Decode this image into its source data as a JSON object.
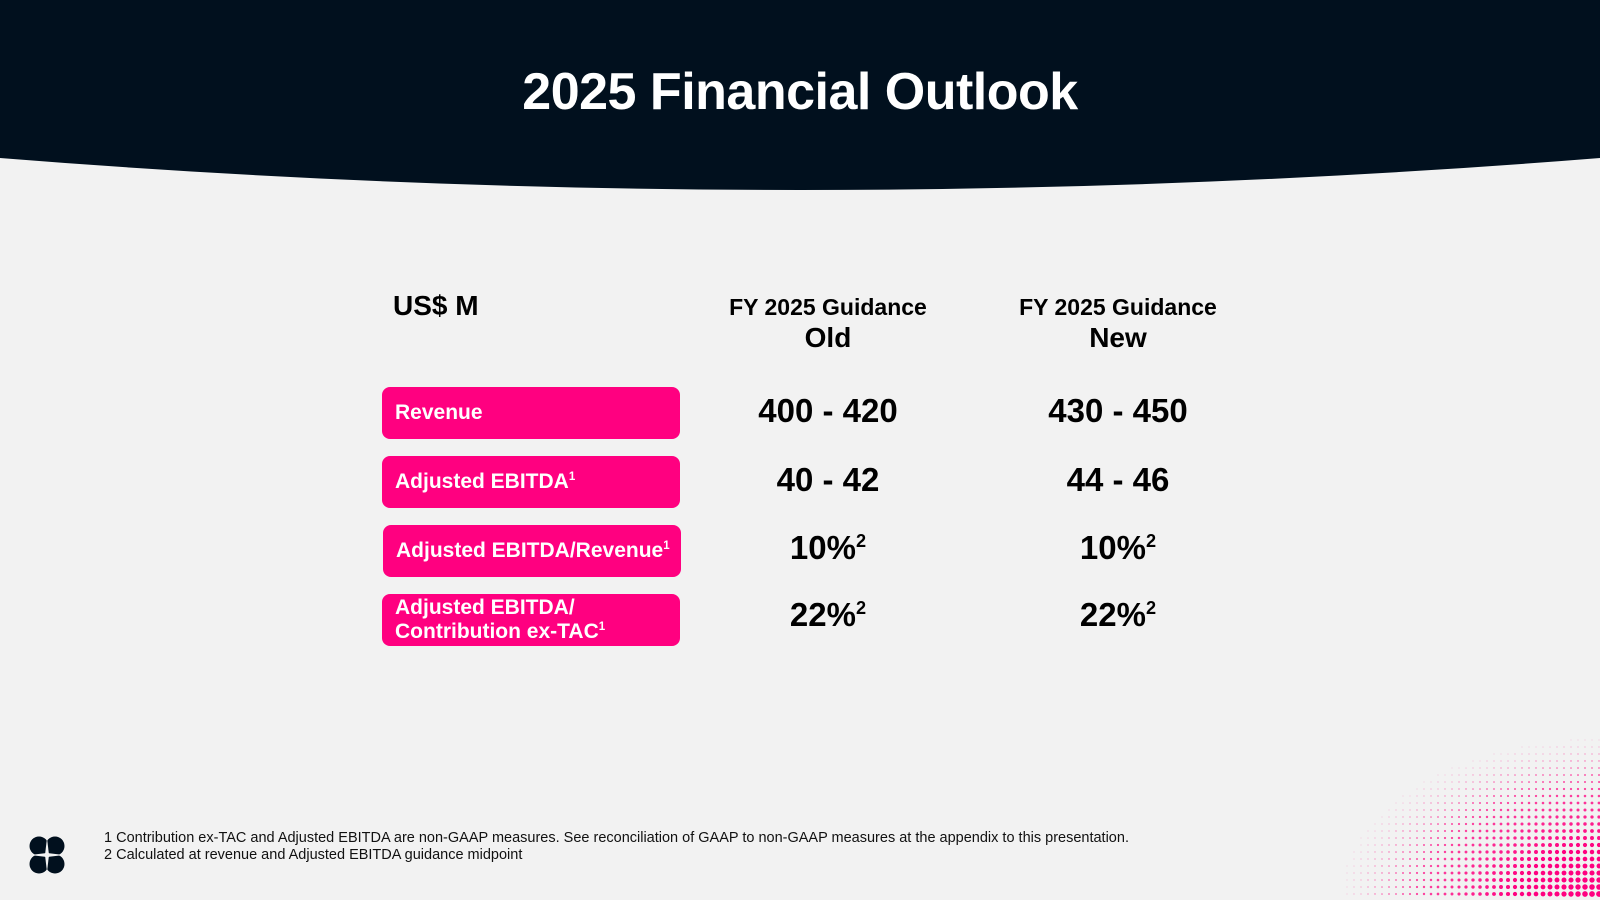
{
  "slide": {
    "title": "2025 Financial Outlook"
  },
  "table": {
    "unit_label": "US$ M",
    "columns": [
      {
        "line1": "FY 2025 Guidance",
        "line2": "Old"
      },
      {
        "line1": "FY 2025 Guidance",
        "line2": "New"
      }
    ],
    "rows": [
      {
        "label": "Revenue",
        "label_sup": "",
        "label_line2": "",
        "old": "400 - 420",
        "old_sup": "",
        "new": "430 - 450",
        "new_sup": ""
      },
      {
        "label": "Adjusted EBITDA",
        "label_sup": "1",
        "label_line2": "",
        "old": "40 - 42",
        "old_sup": "",
        "new": "44 - 46",
        "new_sup": ""
      },
      {
        "label": "Adjusted EBITDA/Revenue",
        "label_sup": "1",
        "label_line2": "",
        "old": "10%",
        "old_sup": "2",
        "new": "10%",
        "new_sup": "2"
      },
      {
        "label": "Adjusted EBITDA/",
        "label_sup": "1",
        "label_line2": "Contribution ex-TAC",
        "old": "22%",
        "old_sup": "2",
        "new": "22%",
        "new_sup": "2"
      }
    ]
  },
  "footnotes": [
    "1 Contribution ex-TAC and Adjusted EBITDA are non-GAAP measures.  See reconciliation of GAAP to non-GAAP measures at the appendix to this presentation.",
    "2 Calculated at revenue and Adjusted EBITDA guidance midpoint"
  ],
  "colors": {
    "header_bg": "#01101e",
    "accent": "#ff0080",
    "background": "#f2f2f2"
  },
  "icons": [
    "company-logo-icon",
    "halftone-dots-decoration"
  ]
}
